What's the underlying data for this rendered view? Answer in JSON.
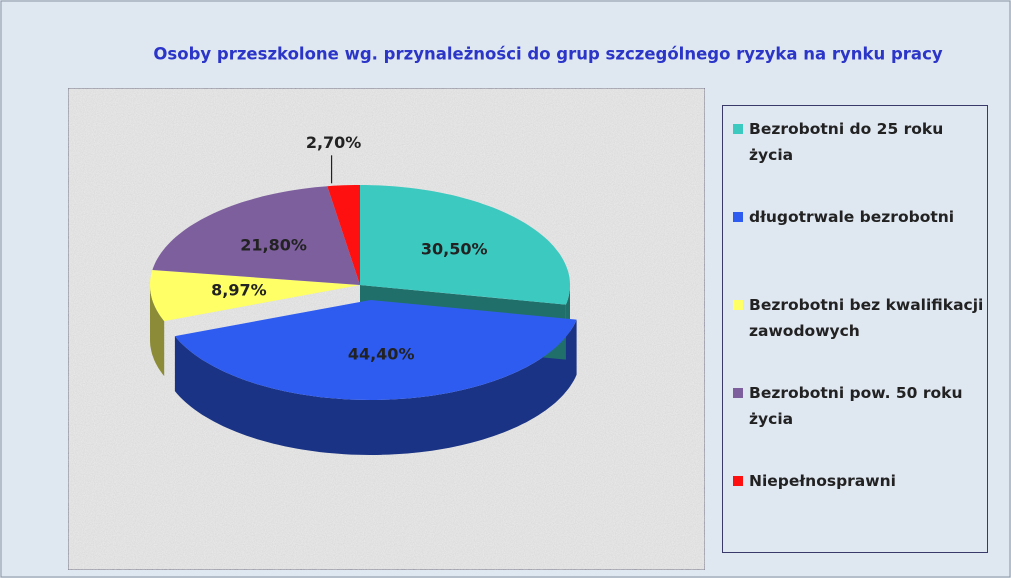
{
  "chart_data": {
    "type": "pie3d",
    "title": "Osoby przeszkolone wg. przynależności do  grup  szczególnego ryzyka  na rynku pracy",
    "categories": [
      "Bezrobotni do 25 roku życia",
      "długotrwale bezrobotni",
      "Bezrobotni  bez kwalifikacji zawodowych",
      "Bezrobotni pow. 50 roku życia",
      "Niepełnosprawni"
    ],
    "values": [
      30.5,
      44.4,
      8.97,
      21.8,
      2.7
    ],
    "value_labels": [
      "30,50%",
      "44,40%",
      "8,97%",
      "21,80%",
      "2,70%"
    ],
    "colors": [
      "#3cc9c0",
      "#2f5cf0",
      "#ffff66",
      "#7d5f9e",
      "#ff1010"
    ],
    "legend": "right"
  }
}
